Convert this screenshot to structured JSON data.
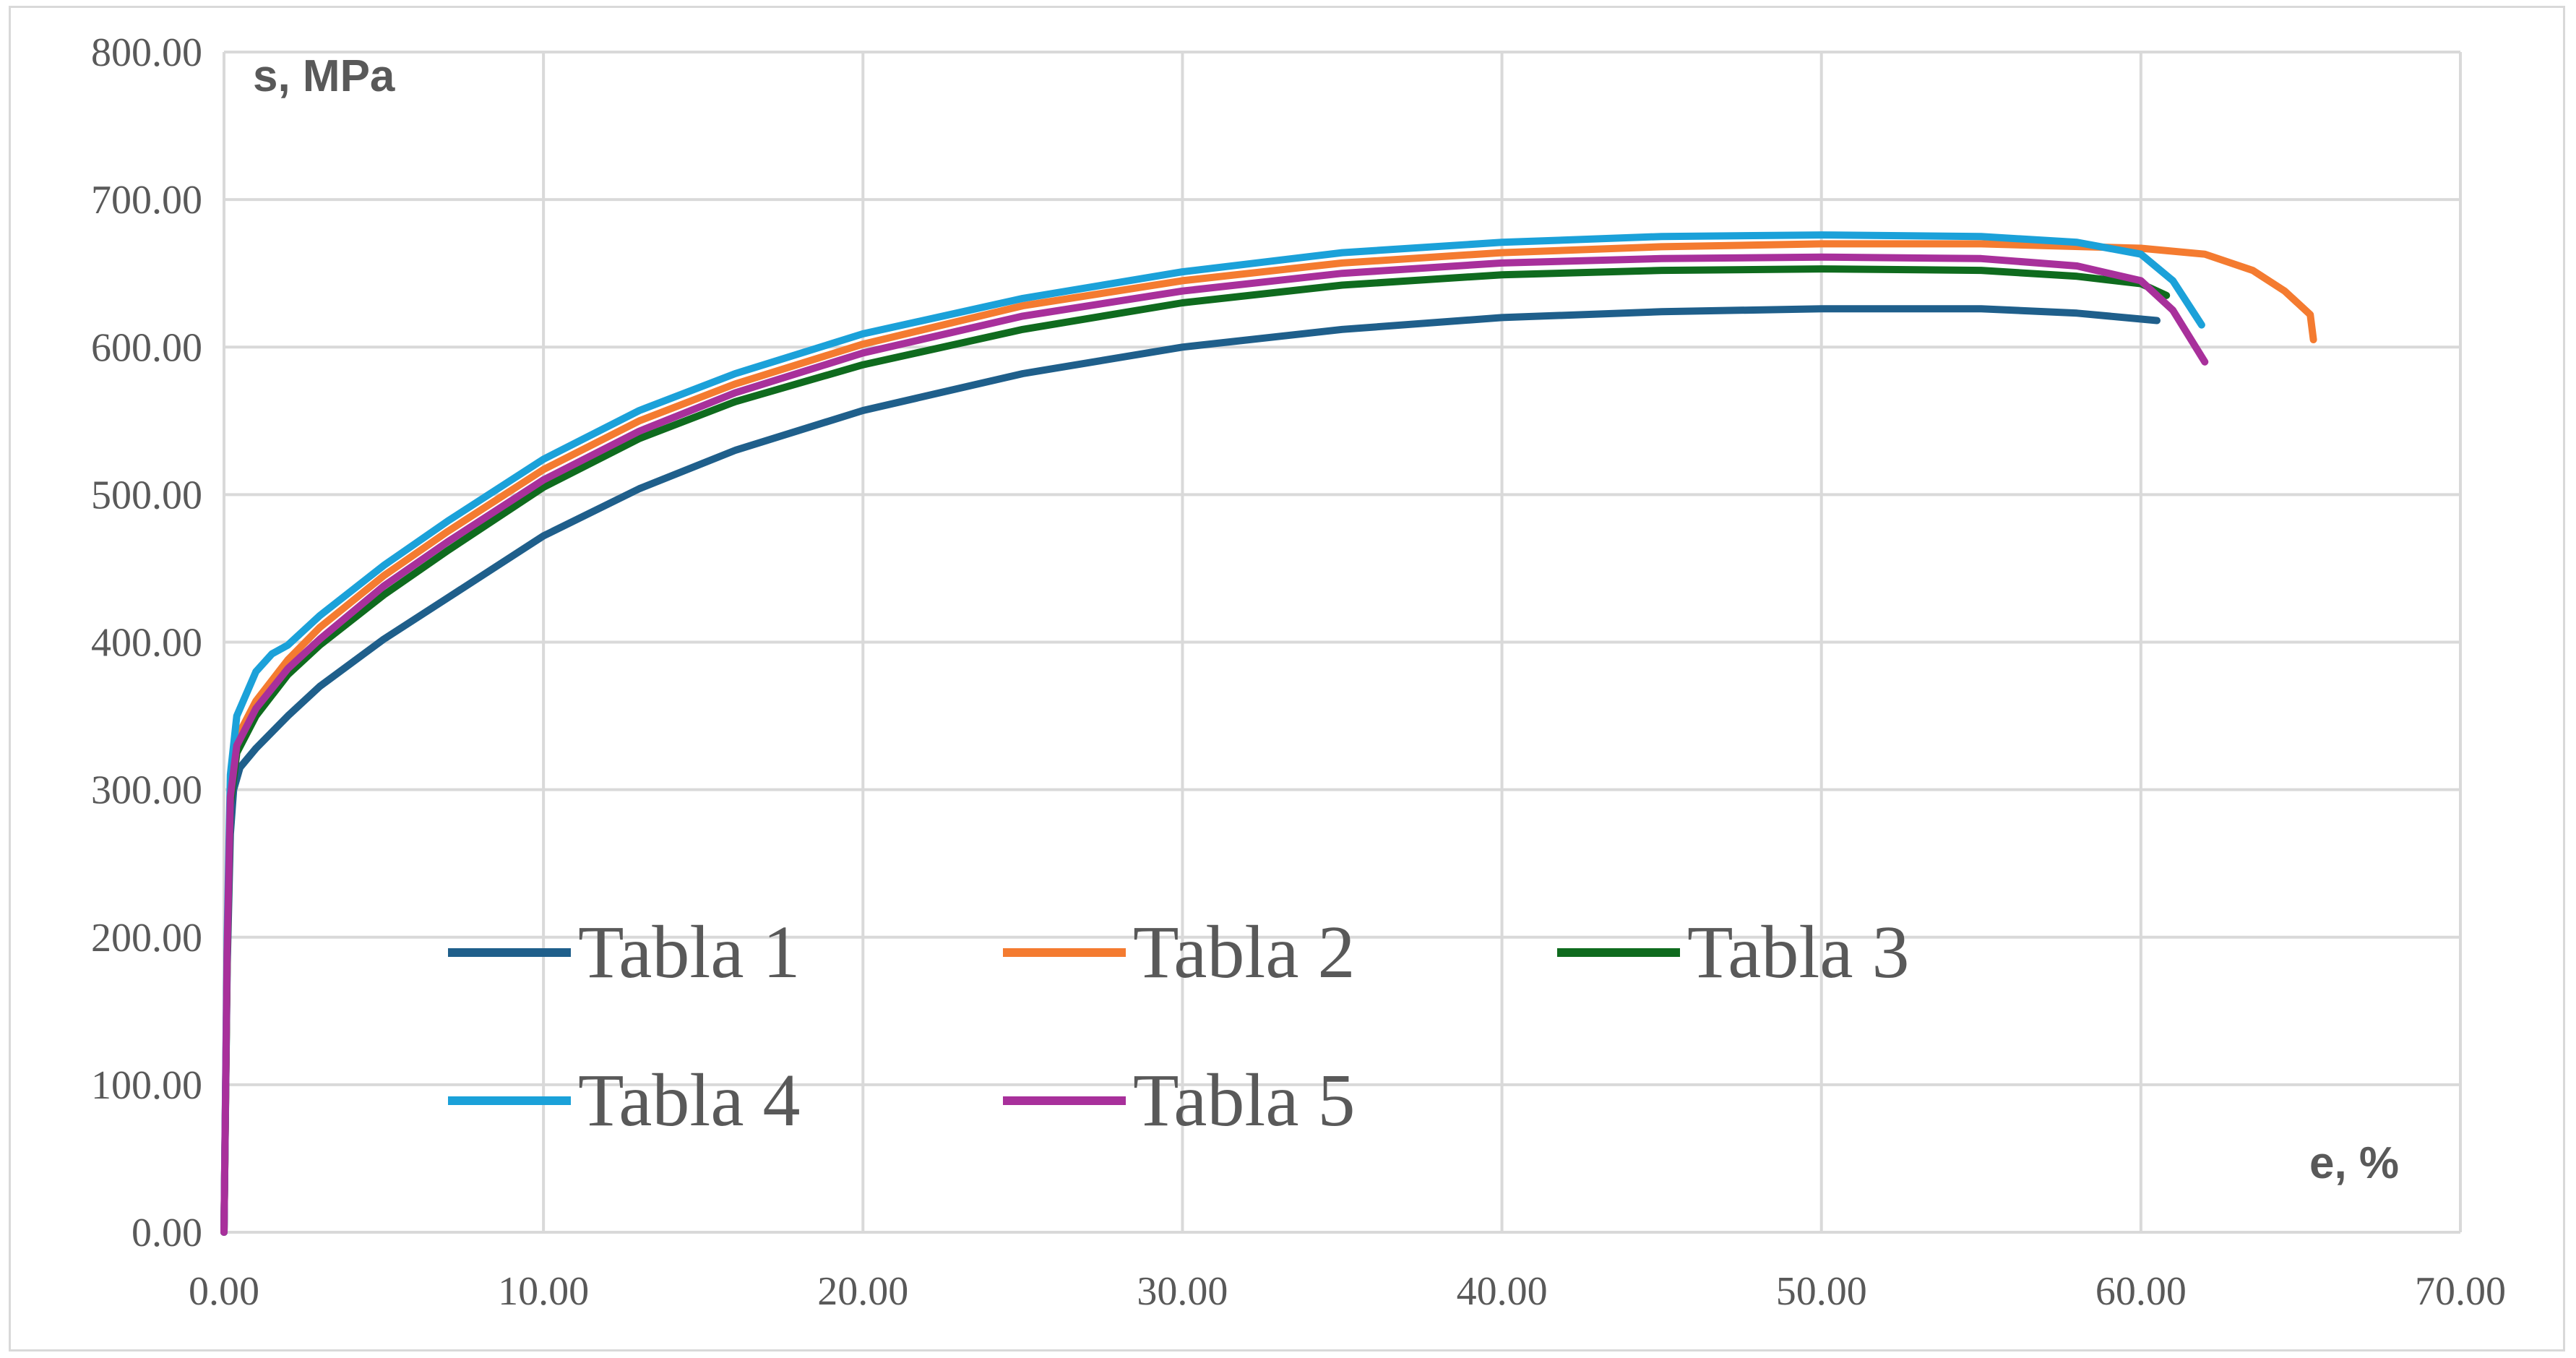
{
  "chart_data": {
    "type": "line",
    "xlabel": "e, %",
    "ylabel": "s, MPa",
    "xlim": [
      0,
      70
    ],
    "ylim": [
      0,
      800
    ],
    "x_ticks": [
      "0.00",
      "10.00",
      "20.00",
      "30.00",
      "40.00",
      "50.00",
      "60.00",
      "70.00"
    ],
    "y_ticks": [
      "0.00",
      "100.00",
      "200.00",
      "300.00",
      "400.00",
      "500.00",
      "600.00",
      "700.00",
      "800.00"
    ],
    "grid": true,
    "legend_position": "inside-bottom-left",
    "series": [
      {
        "name": "Tabla 1",
        "color": "#1f5f8b",
        "points": [
          [
            0,
            0
          ],
          [
            0.1,
            180
          ],
          [
            0.2,
            270
          ],
          [
            0.3,
            300
          ],
          [
            0.5,
            315
          ],
          [
            1,
            328
          ],
          [
            2,
            350
          ],
          [
            3,
            370
          ],
          [
            5,
            402
          ],
          [
            7,
            430
          ],
          [
            10,
            472
          ],
          [
            13,
            504
          ],
          [
            16,
            530
          ],
          [
            20,
            557
          ],
          [
            25,
            582
          ],
          [
            30,
            600
          ],
          [
            35,
            612
          ],
          [
            40,
            620
          ],
          [
            45,
            624
          ],
          [
            50,
            626
          ],
          [
            55,
            626
          ],
          [
            58,
            623
          ],
          [
            60.5,
            618
          ]
        ]
      },
      {
        "name": "Tabla 2",
        "color": "#f47b30",
        "points": [
          [
            0,
            0
          ],
          [
            0.1,
            190
          ],
          [
            0.2,
            300
          ],
          [
            0.4,
            335
          ],
          [
            1,
            360
          ],
          [
            2,
            388
          ],
          [
            3,
            410
          ],
          [
            5,
            445
          ],
          [
            7,
            475
          ],
          [
            10,
            517
          ],
          [
            13,
            550
          ],
          [
            16,
            575
          ],
          [
            20,
            602
          ],
          [
            25,
            628
          ],
          [
            30,
            645
          ],
          [
            35,
            657
          ],
          [
            40,
            664
          ],
          [
            45,
            668
          ],
          [
            50,
            670
          ],
          [
            55,
            670
          ],
          [
            60,
            667
          ],
          [
            62,
            663
          ],
          [
            63.5,
            652
          ],
          [
            64.5,
            638
          ],
          [
            65.3,
            622
          ],
          [
            65.4,
            605
          ]
        ]
      },
      {
        "name": "Tabla 3",
        "color": "#0f6b1e",
        "points": [
          [
            0,
            0
          ],
          [
            0.1,
            185
          ],
          [
            0.2,
            290
          ],
          [
            0.4,
            325
          ],
          [
            1,
            350
          ],
          [
            2,
            378
          ],
          [
            3,
            398
          ],
          [
            5,
            432
          ],
          [
            7,
            462
          ],
          [
            10,
            505
          ],
          [
            13,
            538
          ],
          [
            16,
            563
          ],
          [
            20,
            588
          ],
          [
            25,
            612
          ],
          [
            30,
            630
          ],
          [
            35,
            642
          ],
          [
            40,
            649
          ],
          [
            45,
            652
          ],
          [
            50,
            653
          ],
          [
            55,
            652
          ],
          [
            58,
            648
          ],
          [
            60,
            643
          ],
          [
            60.8,
            635
          ]
        ]
      },
      {
        "name": "Tabla 4",
        "color": "#1ba1d9",
        "points": [
          [
            0,
            0
          ],
          [
            0.1,
            200
          ],
          [
            0.2,
            310
          ],
          [
            0.4,
            350
          ],
          [
            1,
            380
          ],
          [
            1.5,
            392
          ],
          [
            2,
            398
          ],
          [
            3,
            418
          ],
          [
            5,
            452
          ],
          [
            7,
            482
          ],
          [
            10,
            524
          ],
          [
            13,
            557
          ],
          [
            16,
            582
          ],
          [
            20,
            609
          ],
          [
            25,
            633
          ],
          [
            30,
            651
          ],
          [
            35,
            664
          ],
          [
            40,
            671
          ],
          [
            45,
            675
          ],
          [
            50,
            676
          ],
          [
            55,
            675
          ],
          [
            58,
            671
          ],
          [
            60,
            663
          ],
          [
            61,
            645
          ],
          [
            61.9,
            615
          ]
        ]
      },
      {
        "name": "Tabla 5",
        "color": "#a8309b",
        "points": [
          [
            0,
            0
          ],
          [
            0.1,
            190
          ],
          [
            0.2,
            295
          ],
          [
            0.4,
            330
          ],
          [
            1,
            355
          ],
          [
            2,
            382
          ],
          [
            3,
            402
          ],
          [
            5,
            438
          ],
          [
            7,
            468
          ],
          [
            10,
            510
          ],
          [
            13,
            543
          ],
          [
            16,
            569
          ],
          [
            20,
            596
          ],
          [
            25,
            621
          ],
          [
            30,
            638
          ],
          [
            35,
            650
          ],
          [
            40,
            657
          ],
          [
            45,
            660
          ],
          [
            50,
            661
          ],
          [
            55,
            660
          ],
          [
            58,
            655
          ],
          [
            60,
            645
          ],
          [
            61,
            625
          ],
          [
            62,
            590
          ]
        ]
      }
    ]
  }
}
